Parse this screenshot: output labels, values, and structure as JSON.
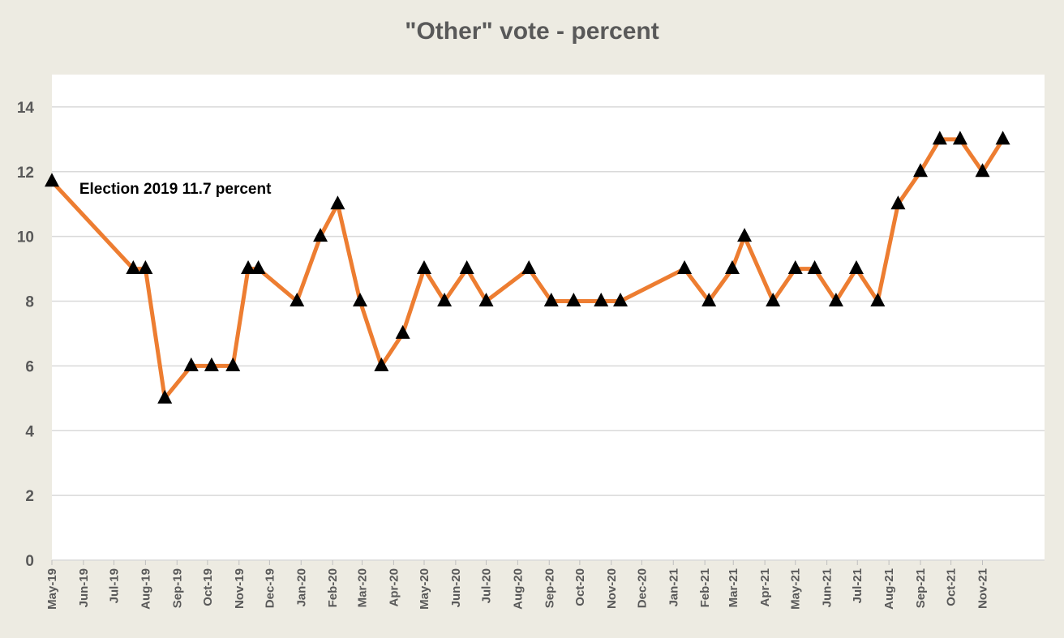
{
  "chart_data": {
    "type": "line",
    "title": "\"Other\" vote - percent",
    "xlabel": "",
    "ylabel": "",
    "ylim": [
      0,
      15
    ],
    "yticks": [
      0,
      2,
      4,
      6,
      8,
      10,
      12,
      14
    ],
    "grid": true,
    "x_start": "2019-05",
    "x_end": "2021-12",
    "x_tick_labels": [
      "May-19",
      "Jun-19",
      "Jul-19",
      "Aug-19",
      "Sep-19",
      "Oct-19",
      "Nov-19",
      "Dec-19",
      "Jan-20",
      "Feb-20",
      "Mar-20",
      "Apr-20",
      "May-20",
      "Jun-20",
      "Jul-20",
      "Aug-20",
      "Sep-20",
      "Oct-20",
      "Nov-20",
      "Dec-20",
      "Jan-21",
      "Feb-21",
      "Mar-21",
      "Apr-21",
      "May-21",
      "Jun-21",
      "Jul-21",
      "Aug-21",
      "Sep-21",
      "Oct-21",
      "Nov-21"
    ],
    "series": [
      {
        "color": "#ed7d31",
        "marker_color": "#000000",
        "marker": "triangle",
        "points": [
          {
            "x": "2019-05-01",
            "y": 11.7
          },
          {
            "x": "2019-07-20",
            "y": 9
          },
          {
            "x": "2019-08-01",
            "y": 9
          },
          {
            "x": "2019-08-20",
            "y": 5
          },
          {
            "x": "2019-09-15",
            "y": 6
          },
          {
            "x": "2019-10-05",
            "y": 6
          },
          {
            "x": "2019-10-26",
            "y": 6
          },
          {
            "x": "2019-11-10",
            "y": 9
          },
          {
            "x": "2019-11-20",
            "y": 9
          },
          {
            "x": "2019-12-28",
            "y": 8
          },
          {
            "x": "2020-01-20",
            "y": 10
          },
          {
            "x": "2020-02-06",
            "y": 11
          },
          {
            "x": "2020-02-28",
            "y": 8
          },
          {
            "x": "2020-03-20",
            "y": 6
          },
          {
            "x": "2020-04-10",
            "y": 7
          },
          {
            "x": "2020-05-01",
            "y": 9
          },
          {
            "x": "2020-05-21",
            "y": 8
          },
          {
            "x": "2020-06-12",
            "y": 9
          },
          {
            "x": "2020-07-01",
            "y": 8
          },
          {
            "x": "2020-08-12",
            "y": 9
          },
          {
            "x": "2020-09-03",
            "y": 8
          },
          {
            "x": "2020-09-25",
            "y": 8
          },
          {
            "x": "2020-10-22",
            "y": 8
          },
          {
            "x": "2020-11-10",
            "y": 8
          },
          {
            "x": "2021-01-12",
            "y": 9
          },
          {
            "x": "2021-02-05",
            "y": 8
          },
          {
            "x": "2021-02-28",
            "y": 9
          },
          {
            "x": "2021-03-12",
            "y": 10
          },
          {
            "x": "2021-04-09",
            "y": 8
          },
          {
            "x": "2021-05-01",
            "y": 9
          },
          {
            "x": "2021-05-20",
            "y": 9
          },
          {
            "x": "2021-06-10",
            "y": 8
          },
          {
            "x": "2021-06-30",
            "y": 9
          },
          {
            "x": "2021-07-21",
            "y": 8
          },
          {
            "x": "2021-08-10",
            "y": 11
          },
          {
            "x": "2021-09-01",
            "y": 12
          },
          {
            "x": "2021-09-20",
            "y": 13
          },
          {
            "x": "2021-10-10",
            "y": 13
          },
          {
            "x": "2021-11-01",
            "y": 12
          },
          {
            "x": "2021-11-21",
            "y": 13
          }
        ]
      }
    ],
    "annotations": [
      {
        "text": "Election 2019 11.7 percent",
        "x": "2019-05-28",
        "y": 11.5
      }
    ]
  }
}
